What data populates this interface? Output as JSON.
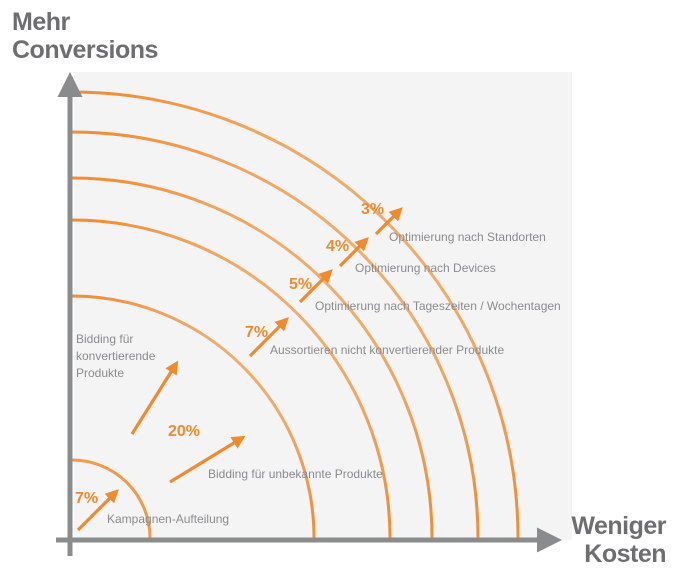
{
  "axes": {
    "y_title_line1": "Mehr",
    "y_title_line2": "Conversions",
    "x_title_line1": "Weniger",
    "x_title_line2": "Kosten"
  },
  "colors": {
    "accent": "#f08a2c",
    "axis": "#8a8b8d",
    "label": "#8a8b8d",
    "panel": "#f4f4f4"
  },
  "steps": [
    {
      "percent": "7%",
      "label": "Kampagnen-Aufteilung"
    },
    {
      "percent": "20%",
      "label_upper_line1": "Bidding für",
      "label_upper_line2": "konvertierende",
      "label_upper_line3": "Produkte",
      "label_lower": "Bidding für unbekannte Produkte"
    },
    {
      "percent": "7%",
      "label": "Aussortieren nicht konvertierender Produkte"
    },
    {
      "percent": "5%",
      "label": "Optimierung nach Tageszeiten / Wochentagen"
    },
    {
      "percent": "4%",
      "label": "Optimierung nach Devices"
    },
    {
      "percent": "3%",
      "label": "Optimierung nach Standorten"
    }
  ]
}
